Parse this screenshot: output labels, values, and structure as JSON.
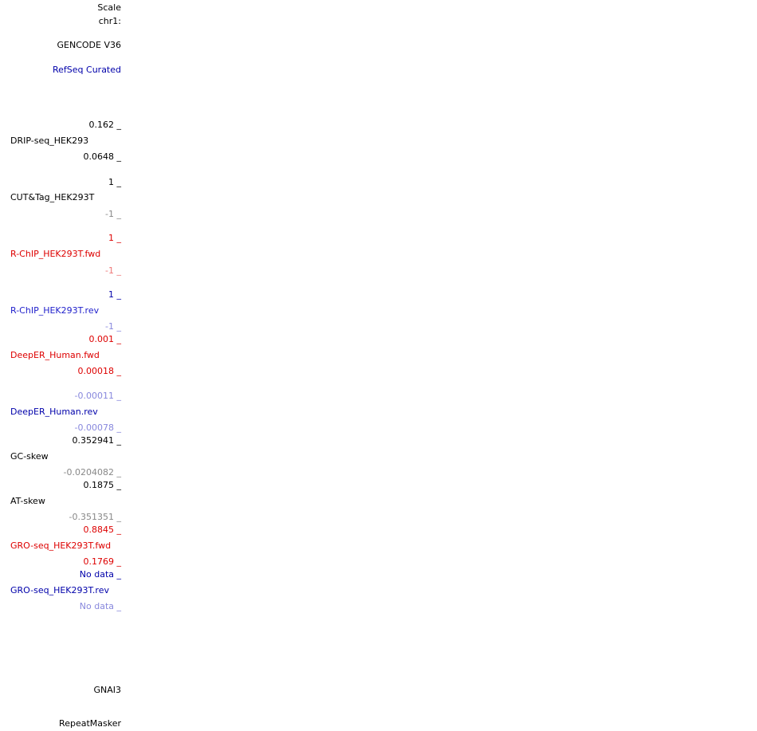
{
  "labels": [
    "Scale",
    "chr1:",
    "GENCODE V36",
    "RefSeq Curated",
    "0.162 _",
    "DRIP-seq_HEK293",
    "0.0648 _",
    "1 _",
    "CUT&Tag_HEK293T",
    "-1 _",
    "1 _",
    "R-ChIP_HEK293T.fwd",
    "-1 _",
    "1 _",
    "R-ChIP_HEK293T.rev",
    "-1 _",
    "0.001 _",
    "DeepER_Human.fwd",
    "0.00018 _",
    "-0.00011 _",
    "DeepER_Human.rev",
    "-0.00078 _",
    "0.352941 _",
    "GC-skew",
    "-0.0204082 _",
    "0.1875 _",
    "AT-skew",
    "-0.351351 _",
    "0.8845 _",
    "GRO-seq_HEK293T.fwd",
    "0.1769 _",
    "No data _",
    "GRO-seq_HEK293T.rev",
    "No data _",
    "GNAI3",
    "RepeatMasker"
  ]
}
